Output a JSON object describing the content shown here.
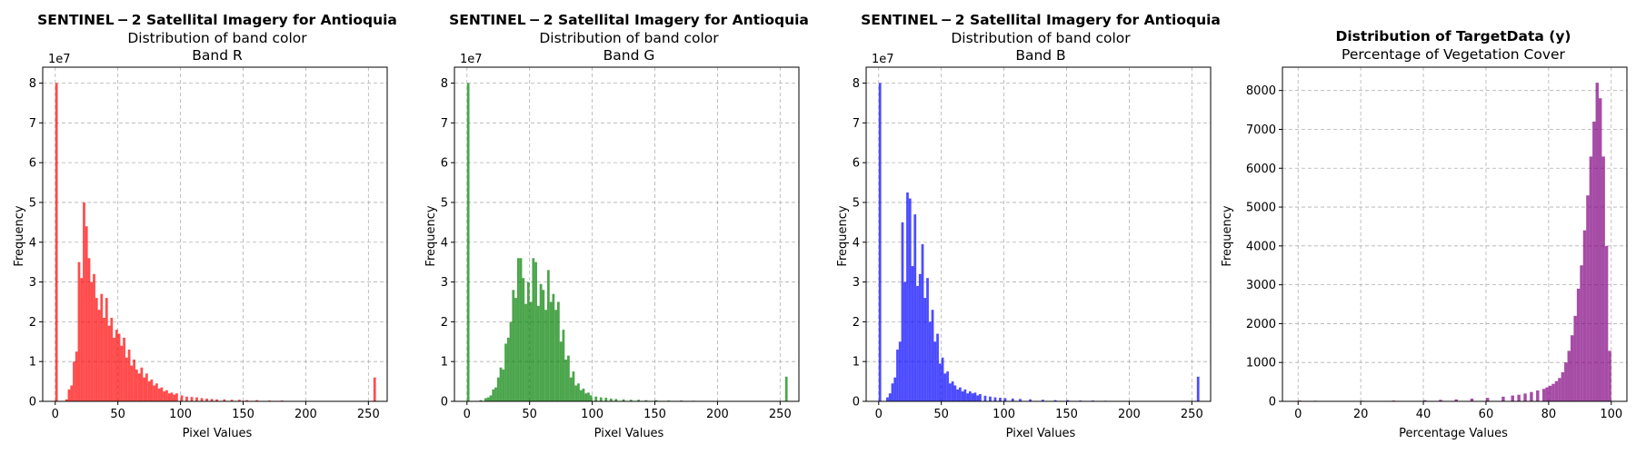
{
  "colors": {
    "band_r": "#ff0000",
    "band_g": "#008000",
    "band_b": "#0000ff",
    "target": "#800080",
    "grid": "#b0b0b0"
  },
  "chart_data": [
    {
      "type": "bar",
      "title": "SENTINEL − 2 Satellital Imagery for Antioquia",
      "subtitle": "Distribution of band color",
      "band_label": "Band R",
      "xlabel": "Pixel Values",
      "ylabel": "Frequency",
      "y_scale_label": "1e7",
      "xlim": [
        -10,
        265
      ],
      "ylim": [
        0,
        8.4
      ],
      "xticks": [
        0,
        50,
        100,
        150,
        200,
        250
      ],
      "yticks": [
        0,
        1,
        2,
        3,
        4,
        5,
        6,
        7,
        8
      ],
      "grid": true,
      "bin_width": 2,
      "bins": [
        [
          0,
          8.0
        ],
        [
          8,
          0.05
        ],
        [
          10,
          0.3
        ],
        [
          12,
          0.4
        ],
        [
          14,
          1.0
        ],
        [
          16,
          1.25
        ],
        [
          18,
          3.5
        ],
        [
          20,
          3.1
        ],
        [
          22,
          5.0
        ],
        [
          24,
          4.4
        ],
        [
          26,
          3.6
        ],
        [
          28,
          3.0
        ],
        [
          30,
          3.2
        ],
        [
          32,
          2.6
        ],
        [
          34,
          2.3
        ],
        [
          36,
          2.7
        ],
        [
          38,
          2.1
        ],
        [
          40,
          2.6
        ],
        [
          42,
          1.9
        ],
        [
          44,
          2.1
        ],
        [
          46,
          1.6
        ],
        [
          48,
          1.8
        ],
        [
          50,
          1.7
        ],
        [
          52,
          1.4
        ],
        [
          54,
          1.6
        ],
        [
          56,
          1.1
        ],
        [
          58,
          1.3
        ],
        [
          60,
          0.9
        ],
        [
          62,
          1.05
        ],
        [
          64,
          0.8
        ],
        [
          66,
          0.7
        ],
        [
          68,
          0.85
        ],
        [
          70,
          0.6
        ],
        [
          72,
          0.7
        ],
        [
          74,
          0.5
        ],
        [
          76,
          0.55
        ],
        [
          78,
          0.4
        ],
        [
          80,
          0.45
        ],
        [
          82,
          0.32
        ],
        [
          84,
          0.35
        ],
        [
          86,
          0.25
        ],
        [
          88,
          0.28
        ],
        [
          90,
          0.2
        ],
        [
          92,
          0.22
        ],
        [
          94,
          0.17
        ],
        [
          96,
          0.2
        ],
        [
          100,
          0.15
        ],
        [
          104,
          0.12
        ],
        [
          108,
          0.11
        ],
        [
          112,
          0.1
        ],
        [
          116,
          0.08
        ],
        [
          120,
          0.07
        ],
        [
          124,
          0.06
        ],
        [
          128,
          0.05
        ],
        [
          134,
          0.05
        ],
        [
          140,
          0.04
        ],
        [
          146,
          0.04
        ],
        [
          152,
          0.03
        ],
        [
          160,
          0.03
        ],
        [
          170,
          0.02
        ],
        [
          180,
          0.02
        ],
        [
          200,
          0.01
        ],
        [
          220,
          0.01
        ],
        [
          240,
          0.01
        ],
        [
          254,
          0.6
        ]
      ]
    },
    {
      "type": "bar",
      "title": "SENTINEL − 2 Satellital Imagery for Antioquia",
      "subtitle": "Distribution of band color",
      "band_label": "Band G",
      "xlabel": "Pixel Values",
      "ylabel": "Frequency",
      "y_scale_label": "1e7",
      "xlim": [
        -10,
        265
      ],
      "ylim": [
        0,
        8.4
      ],
      "xticks": [
        0,
        50,
        100,
        150,
        200,
        250
      ],
      "yticks": [
        0,
        1,
        2,
        3,
        4,
        5,
        6,
        7,
        8
      ],
      "grid": true,
      "bin_width": 2,
      "bins": [
        [
          0,
          8.0
        ],
        [
          10,
          0.03
        ],
        [
          14,
          0.08
        ],
        [
          16,
          0.1
        ],
        [
          18,
          0.15
        ],
        [
          20,
          0.3
        ],
        [
          22,
          0.35
        ],
        [
          24,
          0.6
        ],
        [
          26,
          0.85
        ],
        [
          28,
          0.8
        ],
        [
          30,
          1.45
        ],
        [
          32,
          1.6
        ],
        [
          34,
          2.0
        ],
        [
          36,
          2.8
        ],
        [
          38,
          2.6
        ],
        [
          40,
          3.6
        ],
        [
          42,
          3.6
        ],
        [
          44,
          3.1
        ],
        [
          46,
          2.45
        ],
        [
          48,
          3.0
        ],
        [
          50,
          2.5
        ],
        [
          52,
          3.6
        ],
        [
          54,
          3.5
        ],
        [
          56,
          2.4
        ],
        [
          58,
          2.95
        ],
        [
          60,
          2.8
        ],
        [
          62,
          2.3
        ],
        [
          64,
          3.3
        ],
        [
          66,
          2.5
        ],
        [
          68,
          2.7
        ],
        [
          70,
          2.3
        ],
        [
          72,
          2.5
        ],
        [
          74,
          1.5
        ],
        [
          76,
          1.8
        ],
        [
          78,
          1.05
        ],
        [
          80,
          1.15
        ],
        [
          82,
          0.6
        ],
        [
          84,
          0.75
        ],
        [
          86,
          0.4
        ],
        [
          88,
          0.45
        ],
        [
          90,
          0.28
        ],
        [
          92,
          0.32
        ],
        [
          94,
          0.2
        ],
        [
          96,
          0.22
        ],
        [
          98,
          0.15
        ],
        [
          102,
          0.12
        ],
        [
          106,
          0.1
        ],
        [
          110,
          0.09
        ],
        [
          114,
          0.07
        ],
        [
          118,
          0.06
        ],
        [
          124,
          0.05
        ],
        [
          130,
          0.04
        ],
        [
          136,
          0.04
        ],
        [
          142,
          0.03
        ],
        [
          150,
          0.03
        ],
        [
          160,
          0.02
        ],
        [
          170,
          0.02
        ],
        [
          180,
          0.015
        ],
        [
          200,
          0.01
        ],
        [
          220,
          0.01
        ],
        [
          240,
          0.01
        ],
        [
          254,
          0.62
        ]
      ]
    },
    {
      "type": "bar",
      "title": "SENTINEL − 2 Satellital Imagery for Antioquia",
      "subtitle": "Distribution of band color",
      "band_label": "Band B",
      "xlabel": "Pixel Values",
      "ylabel": "Frequency",
      "y_scale_label": "1e7",
      "xlim": [
        -10,
        265
      ],
      "ylim": [
        0,
        8.4
      ],
      "xticks": [
        0,
        50,
        100,
        150,
        200,
        250
      ],
      "yticks": [
        0,
        1,
        2,
        3,
        4,
        5,
        6,
        7,
        8
      ],
      "grid": true,
      "bin_width": 2,
      "bins": [
        [
          0,
          8.0
        ],
        [
          6,
          0.1
        ],
        [
          8,
          0.2
        ],
        [
          10,
          0.45
        ],
        [
          12,
          0.6
        ],
        [
          14,
          1.3
        ],
        [
          16,
          1.5
        ],
        [
          18,
          4.5
        ],
        [
          20,
          3.0
        ],
        [
          22,
          5.25
        ],
        [
          24,
          5.1
        ],
        [
          26,
          3.4
        ],
        [
          28,
          4.7
        ],
        [
          30,
          2.9
        ],
        [
          32,
          3.2
        ],
        [
          34,
          3.95
        ],
        [
          36,
          2.6
        ],
        [
          38,
          3.1
        ],
        [
          40,
          2.0
        ],
        [
          42,
          2.3
        ],
        [
          44,
          1.5
        ],
        [
          46,
          1.7
        ],
        [
          48,
          0.95
        ],
        [
          50,
          1.1
        ],
        [
          52,
          0.7
        ],
        [
          54,
          0.75
        ],
        [
          56,
          0.45
        ],
        [
          58,
          0.5
        ],
        [
          60,
          0.4
        ],
        [
          62,
          0.3
        ],
        [
          64,
          0.35
        ],
        [
          66,
          0.25
        ],
        [
          68,
          0.3
        ],
        [
          70,
          0.2
        ],
        [
          72,
          0.25
        ],
        [
          74,
          0.2
        ],
        [
          76,
          0.22
        ],
        [
          78,
          0.15
        ],
        [
          80,
          0.18
        ],
        [
          84,
          0.14
        ],
        [
          88,
          0.12
        ],
        [
          92,
          0.1
        ],
        [
          96,
          0.09
        ],
        [
          100,
          0.08
        ],
        [
          106,
          0.07
        ],
        [
          112,
          0.06
        ],
        [
          120,
          0.05
        ],
        [
          130,
          0.04
        ],
        [
          140,
          0.03
        ],
        [
          150,
          0.03
        ],
        [
          160,
          0.02
        ],
        [
          170,
          0.02
        ],
        [
          180,
          0.015
        ],
        [
          200,
          0.01
        ],
        [
          220,
          0.01
        ],
        [
          240,
          0.01
        ],
        [
          254,
          0.62
        ]
      ]
    },
    {
      "type": "bar",
      "title": "Distribution of TargetData (y)",
      "subtitle": "Percentage of Vegetation Cover",
      "xlabel": "Percentage Values",
      "ylabel": "Frequency",
      "xlim": [
        -5,
        105
      ],
      "ylim": [
        0,
        8600
      ],
      "xticks": [
        0,
        20,
        40,
        60,
        80,
        100
      ],
      "yticks": [
        0,
        1000,
        2000,
        3000,
        4000,
        5000,
        6000,
        7000,
        8000
      ],
      "grid": true,
      "bin_width": 1,
      "bins": [
        [
          0,
          20
        ],
        [
          5,
          15
        ],
        [
          10,
          10
        ],
        [
          20,
          15
        ],
        [
          30,
          20
        ],
        [
          40,
          30
        ],
        [
          45,
          40
        ],
        [
          50,
          50
        ],
        [
          55,
          70
        ],
        [
          60,
          90
        ],
        [
          65,
          120
        ],
        [
          68,
          150
        ],
        [
          70,
          170
        ],
        [
          72,
          200
        ],
        [
          74,
          240
        ],
        [
          76,
          280
        ],
        [
          78,
          320
        ],
        [
          79,
          360
        ],
        [
          80,
          400
        ],
        [
          81,
          450
        ],
        [
          82,
          520
        ],
        [
          83,
          600
        ],
        [
          84,
          750
        ],
        [
          85,
          1000
        ],
        [
          86,
          1300
        ],
        [
          87,
          1700
        ],
        [
          88,
          2200
        ],
        [
          89,
          2900
        ],
        [
          90,
          3500
        ],
        [
          91,
          4400
        ],
        [
          92,
          5300
        ],
        [
          93,
          6300
        ],
        [
          94,
          7200
        ],
        [
          95,
          8200
        ],
        [
          96,
          7800
        ],
        [
          97,
          6300
        ],
        [
          98,
          4000
        ],
        [
          99,
          1300
        ]
      ]
    }
  ]
}
